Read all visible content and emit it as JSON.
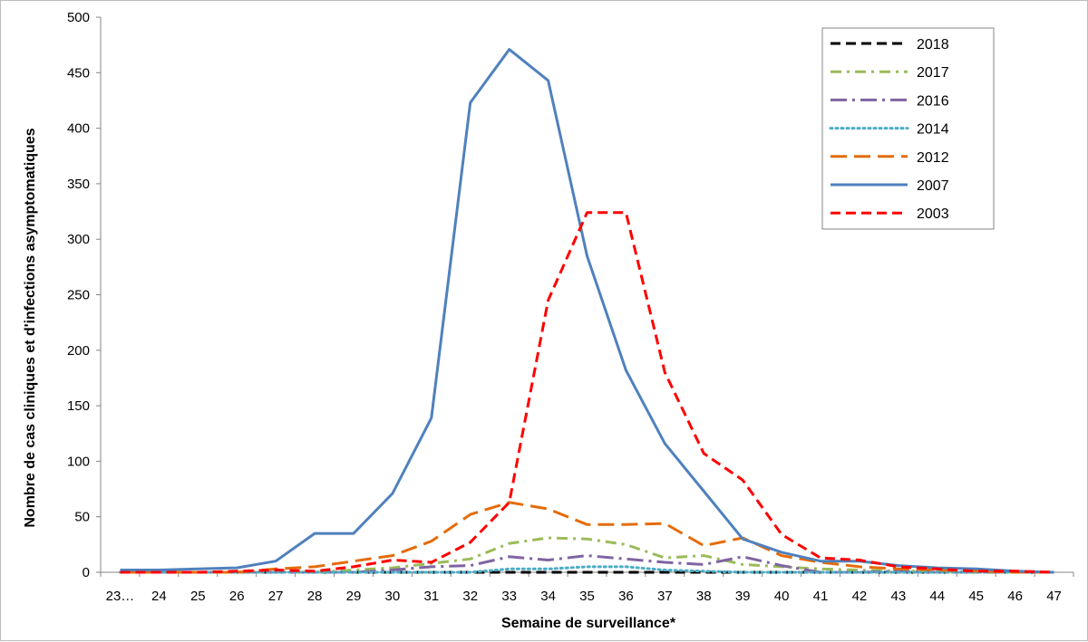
{
  "chart_data": {
    "type": "line",
    "xlabel": "Semaine de surveillance*",
    "ylabel": "Nombre de cas cliniques et d'infections asymptomatiques",
    "categories": [
      "23…",
      "24",
      "25",
      "26",
      "27",
      "28",
      "29",
      "30",
      "31",
      "32",
      "33",
      "34",
      "35",
      "36",
      "37",
      "38",
      "39",
      "40",
      "41",
      "42",
      "43",
      "44",
      "45",
      "46",
      "47"
    ],
    "ylim": [
      0,
      500
    ],
    "yticks": [
      0,
      50,
      100,
      150,
      200,
      250,
      300,
      350,
      400,
      450,
      500
    ],
    "grid": false,
    "legend_position": "top-right",
    "series": [
      {
        "name": "2018",
        "color": "#000000",
        "dash": "dash",
        "values": [
          0,
          0,
          0,
          0,
          0,
          0,
          0,
          0,
          0,
          0,
          0,
          0,
          0,
          0,
          0,
          0,
          0,
          0,
          0,
          0,
          0,
          0,
          0,
          0,
          0
        ]
      },
      {
        "name": "2017",
        "color": "#9bbb59",
        "dash": "dashdot",
        "values": [
          0,
          0,
          0,
          0,
          0,
          0,
          2,
          4,
          8,
          12,
          26,
          31,
          30,
          25,
          13,
          15,
          7,
          5,
          3,
          2,
          1,
          1,
          0,
          0,
          0
        ]
      },
      {
        "name": "2016",
        "color": "#8064a2",
        "dash": "longdashdot",
        "values": [
          0,
          0,
          0,
          0,
          0,
          0,
          0,
          2,
          5,
          6,
          14,
          11,
          15,
          12,
          9,
          7,
          14,
          6,
          0,
          0,
          1,
          0,
          0,
          0,
          0
        ]
      },
      {
        "name": "2014",
        "color": "#4bacc6",
        "dash": "dot",
        "values": [
          0,
          0,
          0,
          0,
          0,
          0,
          0,
          0,
          0,
          0,
          3,
          3,
          5,
          5,
          2,
          1,
          0,
          0,
          0,
          0,
          0,
          0,
          0,
          0,
          0
        ]
      },
      {
        "name": "2012",
        "color": "#e46c0a",
        "dash": "longdash",
        "values": [
          0,
          0,
          0,
          0,
          3,
          5,
          10,
          15,
          28,
          52,
          63,
          57,
          43,
          43,
          44,
          24,
          31,
          15,
          9,
          5,
          3,
          2,
          1,
          0,
          0
        ]
      },
      {
        "name": "2007",
        "color": "#4f81bd",
        "dash": "solid",
        "values": [
          2,
          2,
          3,
          4,
          10,
          35,
          35,
          71,
          139,
          423,
          471,
          443,
          285,
          182,
          116,
          73,
          30,
          18,
          10,
          10,
          6,
          4,
          3,
          1,
          0
        ]
      },
      {
        "name": "2003",
        "color": "#ff0000",
        "dash": "dash",
        "values": [
          0,
          0,
          0,
          1,
          2,
          1,
          5,
          11,
          9,
          27,
          63,
          245,
          324,
          324,
          180,
          107,
          83,
          34,
          13,
          11,
          5,
          3,
          1,
          1,
          0
        ]
      }
    ]
  }
}
